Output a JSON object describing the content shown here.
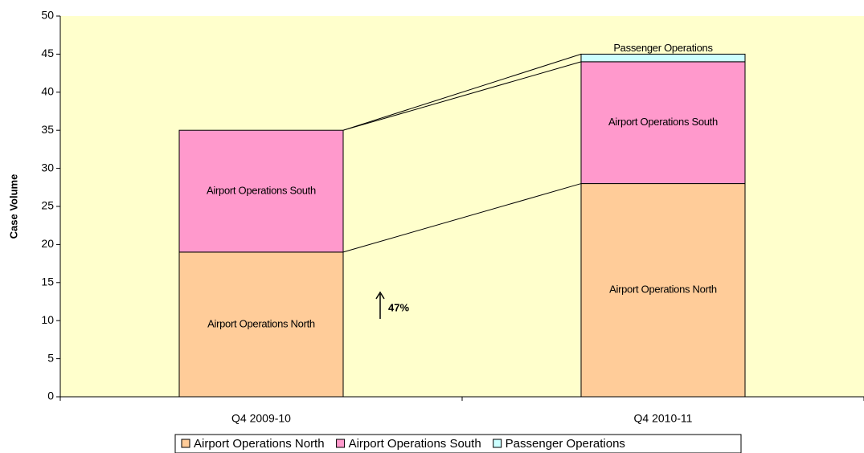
{
  "chart_data": {
    "type": "stacked-bar",
    "y_label": "Case Volume",
    "annotation": "47%",
    "categories": [
      "Q4 2009-10",
      "Q4 2010-11"
    ],
    "series": [
      {
        "name": "Airport Operations North",
        "color": "#ffcc99",
        "values": [
          19,
          28
        ]
      },
      {
        "name": "Airport Operations South",
        "color": "#ff99cc",
        "values": [
          16,
          16
        ]
      },
      {
        "name": "Passenger Operations",
        "color": "#ccffff",
        "values": [
          0,
          1
        ]
      }
    ],
    "ylim": [
      0,
      50
    ],
    "yticks": [
      0,
      5,
      10,
      15,
      20,
      25,
      30,
      35,
      40,
      45,
      50
    ],
    "background": "#ffffcc",
    "legend": "bottom"
  }
}
